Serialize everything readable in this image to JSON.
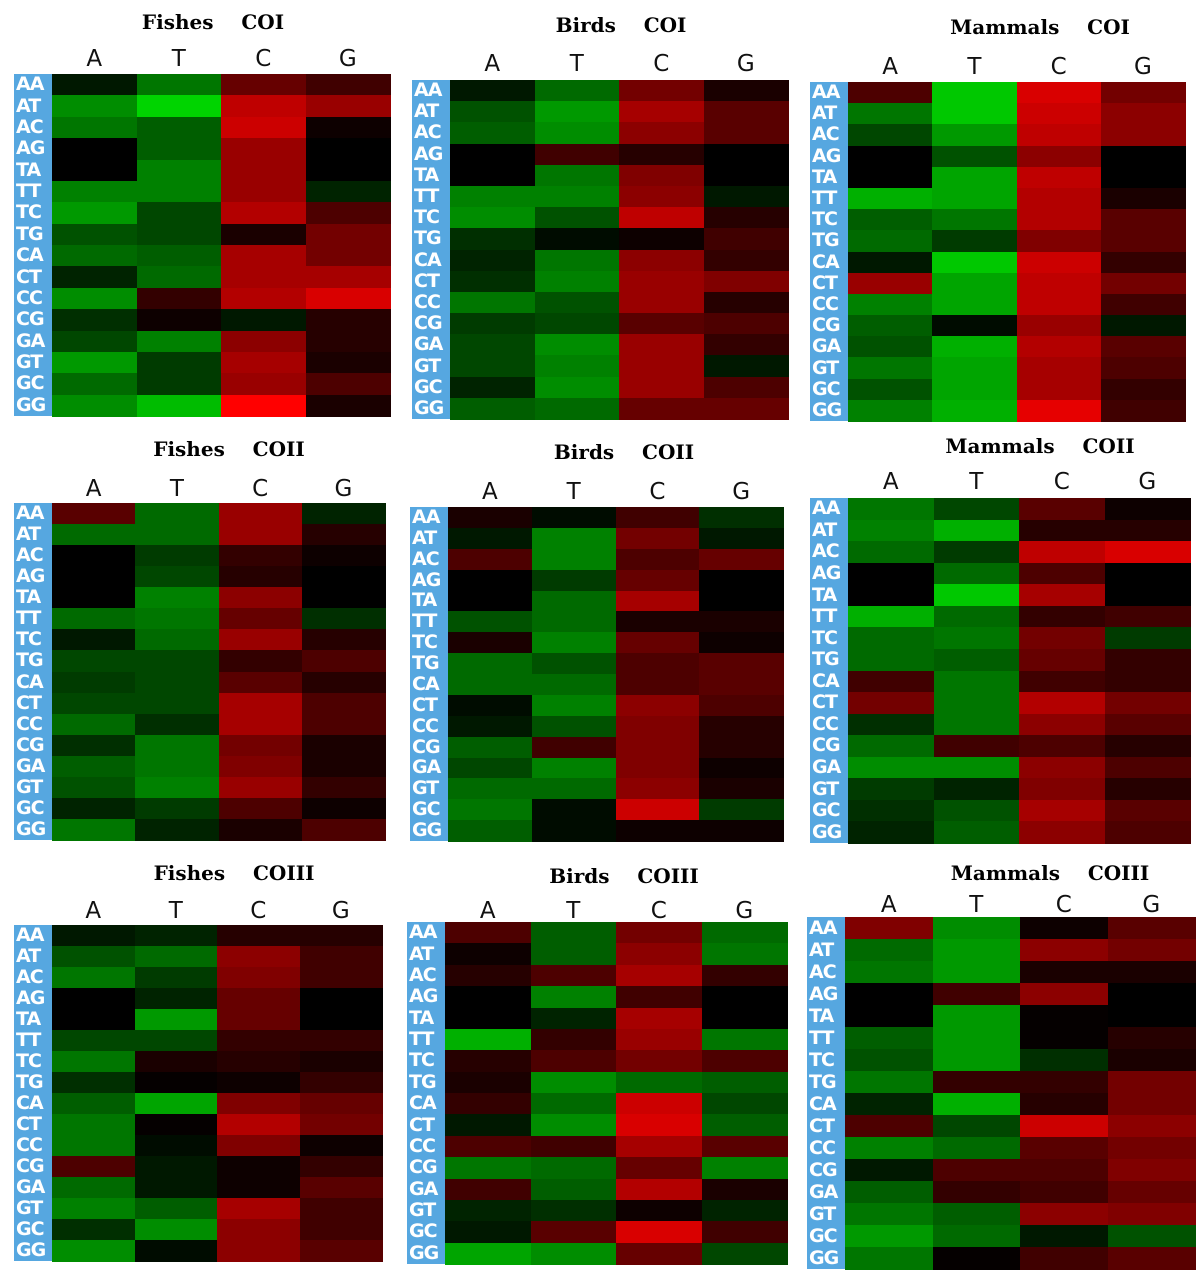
{
  "chart_data": [
    {
      "type": "heatmap",
      "title": "Fishes    COI",
      "columns": [
        "A",
        "T",
        "C",
        "G"
      ],
      "rows": [
        "AA",
        "AT",
        "AC",
        "AG",
        "TA",
        "TT",
        "TC",
        "TG",
        "CA",
        "CT",
        "CC",
        "CG",
        "GA",
        "GT",
        "GC",
        "GG"
      ],
      "values": [
        [
          -0.1,
          -0.5,
          0.4,
          0.25
        ],
        [
          -0.6,
          -0.9,
          0.75,
          0.6
        ],
        [
          -0.5,
          -0.4,
          0.8,
          0.05
        ],
        [
          0,
          -0.4,
          0.6,
          0
        ],
        [
          0,
          -0.55,
          0.6,
          0
        ],
        [
          -0.55,
          -0.55,
          0.6,
          -0.15
        ],
        [
          -0.65,
          -0.3,
          0.7,
          0.3
        ],
        [
          -0.35,
          -0.3,
          0.1,
          0.45
        ],
        [
          -0.45,
          -0.4,
          0.65,
          0.45
        ],
        [
          -0.15,
          -0.45,
          0.65,
          0.65
        ],
        [
          -0.6,
          0.2,
          0.7,
          0.85
        ],
        [
          -0.2,
          0.05,
          -0.1,
          0.15
        ],
        [
          -0.3,
          -0.55,
          0.55,
          0.15
        ],
        [
          -0.65,
          -0.25,
          0.65,
          0.1
        ],
        [
          -0.45,
          -0.25,
          0.6,
          0.3
        ],
        [
          -0.6,
          -0.8,
          1,
          0.1
        ]
      ]
    },
    {
      "type": "heatmap",
      "title": "Birds    COI",
      "columns": [
        "A",
        "T",
        "C",
        "G"
      ],
      "rows": [
        "AA",
        "AT",
        "AC",
        "AG",
        "TA",
        "TT",
        "TC",
        "TG",
        "CA",
        "CT",
        "CC",
        "CG",
        "GA",
        "GT",
        "GC",
        "GG"
      ],
      "values": [
        [
          -0.1,
          -0.45,
          0.45,
          0.1
        ],
        [
          -0.35,
          -0.65,
          0.65,
          0.35
        ],
        [
          -0.4,
          -0.6,
          0.55,
          0.35
        ],
        [
          0,
          0.25,
          0.15,
          0
        ],
        [
          0,
          -0.5,
          0.5,
          0
        ],
        [
          -0.55,
          -0.55,
          0.55,
          -0.1
        ],
        [
          -0.6,
          -0.35,
          0.75,
          0.15
        ],
        [
          -0.2,
          -0.05,
          0.05,
          0.25
        ],
        [
          -0.15,
          -0.5,
          0.55,
          0.2
        ],
        [
          -0.2,
          -0.55,
          0.6,
          0.5
        ],
        [
          -0.5,
          -0.35,
          0.6,
          0.15
        ],
        [
          -0.25,
          -0.3,
          0.35,
          0.3
        ],
        [
          -0.3,
          -0.6,
          0.6,
          0.2
        ],
        [
          -0.3,
          -0.55,
          0.6,
          -0.1
        ],
        [
          -0.15,
          -0.6,
          0.6,
          0.3
        ],
        [
          -0.4,
          -0.45,
          0.4,
          0.4
        ]
      ]
    },
    {
      "type": "heatmap",
      "title": "Mammals    COI",
      "columns": [
        "A",
        "T",
        "C",
        "G"
      ],
      "rows": [
        "AA",
        "AT",
        "AC",
        "AG",
        "TA",
        "TT",
        "TC",
        "TG",
        "CA",
        "CT",
        "CC",
        "CG",
        "GA",
        "GT",
        "GC",
        "GG"
      ],
      "values": [
        [
          0.3,
          -0.85,
          0.85,
          0.45
        ],
        [
          -0.5,
          -0.85,
          0.8,
          0.55
        ],
        [
          -0.3,
          -0.65,
          0.75,
          0.55
        ],
        [
          0,
          -0.35,
          0.55,
          0
        ],
        [
          0,
          -0.7,
          0.75,
          0
        ],
        [
          -0.75,
          -0.7,
          0.7,
          0.1
        ],
        [
          -0.4,
          -0.5,
          0.7,
          0.35
        ],
        [
          -0.45,
          -0.25,
          0.5,
          0.35
        ],
        [
          -0.1,
          -0.85,
          0.8,
          0.2
        ],
        [
          0.6,
          -0.7,
          0.75,
          0.45
        ],
        [
          -0.55,
          -0.7,
          0.75,
          0.25
        ],
        [
          -0.4,
          -0.05,
          0.6,
          -0.1
        ],
        [
          -0.35,
          -0.75,
          0.7,
          0.35
        ],
        [
          -0.5,
          -0.7,
          0.65,
          0.3
        ],
        [
          -0.35,
          -0.7,
          0.65,
          0.2
        ],
        [
          -0.55,
          -0.75,
          0.9,
          0.25
        ]
      ]
    },
    {
      "type": "heatmap",
      "title": "Fishes    COII",
      "columns": [
        "A",
        "T",
        "C",
        "G"
      ],
      "rows": [
        "AA",
        "AT",
        "AC",
        "AG",
        "TA",
        "TT",
        "TC",
        "TG",
        "CA",
        "CT",
        "CC",
        "CG",
        "GA",
        "GT",
        "GC",
        "GG"
      ],
      "values": [
        [
          0.35,
          -0.45,
          0.6,
          -0.15
        ],
        [
          -0.45,
          -0.45,
          0.6,
          0.15
        ],
        [
          0,
          -0.25,
          0.2,
          0.05
        ],
        [
          0,
          -0.3,
          0.15,
          0
        ],
        [
          0,
          -0.55,
          0.55,
          0
        ],
        [
          -0.45,
          -0.5,
          0.4,
          -0.2
        ],
        [
          -0.1,
          -0.45,
          0.6,
          0.15
        ],
        [
          -0.3,
          -0.3,
          0.2,
          0.3
        ],
        [
          -0.25,
          -0.3,
          0.35,
          0.15
        ],
        [
          -0.3,
          -0.3,
          0.65,
          0.3
        ],
        [
          -0.45,
          -0.2,
          0.65,
          0.3
        ],
        [
          -0.2,
          -0.5,
          0.45,
          0.1
        ],
        [
          -0.4,
          -0.5,
          0.5,
          0.1
        ],
        [
          -0.35,
          -0.55,
          0.6,
          0.2
        ],
        [
          -0.15,
          -0.25,
          0.3,
          0.05
        ],
        [
          -0.5,
          -0.15,
          0.1,
          0.3
        ]
      ]
    },
    {
      "type": "heatmap",
      "title": "Birds    COII",
      "columns": [
        "A",
        "T",
        "C",
        "G"
      ],
      "rows": [
        "AA",
        "AT",
        "AC",
        "AG",
        "TA",
        "TT",
        "TC",
        "TG",
        "CA",
        "CT",
        "CC",
        "CG",
        "GA",
        "GT",
        "GC",
        "GG"
      ],
      "values": [
        [
          0.1,
          -0.05,
          0.25,
          -0.2
        ],
        [
          -0.1,
          -0.55,
          0.45,
          -0.1
        ],
        [
          0.3,
          -0.55,
          0.3,
          0.4
        ],
        [
          0,
          -0.25,
          0.4,
          0
        ],
        [
          0,
          -0.45,
          0.65,
          0
        ],
        [
          -0.35,
          -0.45,
          0.1,
          0.1
        ],
        [
          0.1,
          -0.55,
          0.4,
          0.05
        ],
        [
          -0.45,
          -0.35,
          0.3,
          0.35
        ],
        [
          -0.45,
          -0.45,
          0.3,
          0.35
        ],
        [
          -0.05,
          -0.55,
          0.55,
          0.3
        ],
        [
          -0.1,
          -0.35,
          0.5,
          0.15
        ],
        [
          -0.4,
          0.25,
          0.5,
          0.15
        ],
        [
          -0.3,
          -0.55,
          0.5,
          0.05
        ],
        [
          -0.45,
          -0.45,
          0.55,
          0.1
        ],
        [
          -0.5,
          -0.05,
          0.8,
          -0.25
        ],
        [
          -0.4,
          -0.05,
          0.05,
          0.05
        ]
      ]
    },
    {
      "type": "heatmap",
      "title": "Mammals    COII",
      "columns": [
        "A",
        "T",
        "C",
        "G"
      ],
      "rows": [
        "AA",
        "AT",
        "AC",
        "AG",
        "TA",
        "TT",
        "TC",
        "TG",
        "CA",
        "CT",
        "CC",
        "CG",
        "GA",
        "GT",
        "GC",
        "GG"
      ],
      "values": [
        [
          -0.5,
          -0.3,
          0.35,
          0.05
        ],
        [
          -0.55,
          -0.75,
          0.15,
          0.15
        ],
        [
          -0.45,
          -0.25,
          0.75,
          0.85
        ],
        [
          0,
          -0.45,
          0.3,
          0
        ],
        [
          0,
          -0.85,
          0.65,
          0
        ],
        [
          -0.75,
          -0.45,
          0.2,
          0.25
        ],
        [
          -0.45,
          -0.5,
          0.45,
          -0.25
        ],
        [
          -0.45,
          -0.4,
          0.4,
          0.2
        ],
        [
          0.25,
          -0.5,
          0.25,
          0.2
        ],
        [
          0.45,
          -0.5,
          0.7,
          0.45
        ],
        [
          -0.2,
          -0.5,
          0.55,
          0.35
        ],
        [
          -0.45,
          0.25,
          0.3,
          0.15
        ],
        [
          -0.6,
          -0.6,
          0.55,
          0.3
        ],
        [
          -0.25,
          -0.15,
          0.5,
          0.15
        ],
        [
          -0.2,
          -0.35,
          0.65,
          0.35
        ],
        [
          -0.15,
          -0.4,
          0.55,
          0.3
        ]
      ]
    },
    {
      "type": "heatmap",
      "title": "Fishes    COIII",
      "columns": [
        "A",
        "T",
        "C",
        "G"
      ],
      "rows": [
        "AA",
        "AT",
        "AC",
        "AG",
        "TA",
        "TT",
        "TC",
        "TG",
        "CA",
        "CT",
        "CC",
        "CG",
        "GA",
        "GT",
        "GC",
        "GG"
      ],
      "values": [
        [
          -0.1,
          -0.15,
          0.15,
          0.15
        ],
        [
          -0.35,
          -0.45,
          0.55,
          0.25
        ],
        [
          -0.5,
          -0.25,
          0.5,
          0.25
        ],
        [
          0,
          -0.15,
          0.4,
          0
        ],
        [
          0,
          -0.65,
          0.4,
          0
        ],
        [
          -0.3,
          -0.3,
          0.2,
          0.2
        ],
        [
          -0.5,
          0.1,
          0.15,
          0.1
        ],
        [
          -0.2,
          0.02,
          0.05,
          0.2
        ],
        [
          -0.4,
          -0.7,
          0.5,
          0.4
        ],
        [
          -0.5,
          0.02,
          0.7,
          0.45
        ],
        [
          -0.5,
          -0.05,
          0.5,
          0.05
        ],
        [
          0.3,
          -0.1,
          0.05,
          0.2
        ],
        [
          -0.45,
          -0.1,
          0.05,
          0.35
        ],
        [
          -0.55,
          -0.4,
          0.65,
          0.25
        ],
        [
          -0.2,
          -0.6,
          0.55,
          0.25
        ],
        [
          -0.6,
          -0.05,
          0.55,
          0.35
        ]
      ]
    },
    {
      "type": "heatmap",
      "title": "Birds    COIII",
      "columns": [
        "A",
        "T",
        "C",
        "G"
      ],
      "rows": [
        "AA",
        "AT",
        "AC",
        "AG",
        "TA",
        "TT",
        "TC",
        "TG",
        "CA",
        "CT",
        "CC",
        "CG",
        "GA",
        "GT",
        "GC",
        "GG"
      ],
      "values": [
        [
          0.3,
          -0.4,
          0.45,
          -0.45
        ],
        [
          0.05,
          -0.4,
          0.55,
          -0.5
        ],
        [
          0.15,
          0.3,
          0.65,
          0.2
        ],
        [
          0,
          -0.55,
          0.25,
          0
        ],
        [
          0,
          -0.15,
          0.65,
          0
        ],
        [
          -0.75,
          0.2,
          0.6,
          -0.5
        ],
        [
          0.15,
          0.3,
          0.45,
          0.3
        ],
        [
          0.1,
          -0.6,
          -0.45,
          -0.4
        ],
        [
          0.2,
          -0.45,
          0.8,
          -0.3
        ],
        [
          -0.1,
          -0.6,
          0.85,
          -0.4
        ],
        [
          0.3,
          0.25,
          0.65,
          0.35
        ],
        [
          -0.5,
          -0.45,
          0.4,
          -0.55
        ],
        [
          0.25,
          -0.4,
          0.7,
          0.1
        ],
        [
          -0.15,
          -0.2,
          0.05,
          -0.15
        ],
        [
          -0.1,
          0.35,
          0.85,
          0.25
        ],
        [
          -0.7,
          -0.6,
          0.4,
          -0.3
        ]
      ]
    },
    {
      "type": "heatmap",
      "title": "Mammals    COIII",
      "columns": [
        "A",
        "T",
        "C",
        "G"
      ],
      "rows": [
        "AA",
        "AT",
        "AC",
        "AG",
        "TA",
        "TT",
        "TC",
        "TG",
        "CA",
        "CT",
        "CC",
        "CG",
        "GA",
        "GT",
        "GC",
        "GG"
      ],
      "values": [
        [
          0.5,
          -0.6,
          0.05,
          0.35
        ],
        [
          -0.45,
          -0.65,
          0.55,
          0.45
        ],
        [
          -0.5,
          -0.65,
          0.1,
          0.1
        ],
        [
          0,
          0.25,
          0.55,
          0
        ],
        [
          0,
          -0.65,
          0.02,
          0
        ],
        [
          -0.4,
          -0.65,
          0.02,
          0.15
        ],
        [
          -0.35,
          -0.65,
          -0.2,
          0.1
        ],
        [
          -0.5,
          0.2,
          0.2,
          0.45
        ],
        [
          -0.15,
          -0.75,
          0.15,
          0.45
        ],
        [
          0.3,
          -0.3,
          0.8,
          0.55
        ],
        [
          -0.55,
          -0.45,
          0.35,
          0.45
        ],
        [
          -0.1,
          0.3,
          0.3,
          0.5
        ],
        [
          -0.4,
          0.2,
          0.25,
          0.4
        ],
        [
          -0.5,
          -0.4,
          0.55,
          0.5
        ],
        [
          -0.65,
          -0.45,
          -0.1,
          -0.35
        ],
        [
          -0.5,
          0.02,
          0.25,
          0.35
        ]
      ]
    }
  ]
}
